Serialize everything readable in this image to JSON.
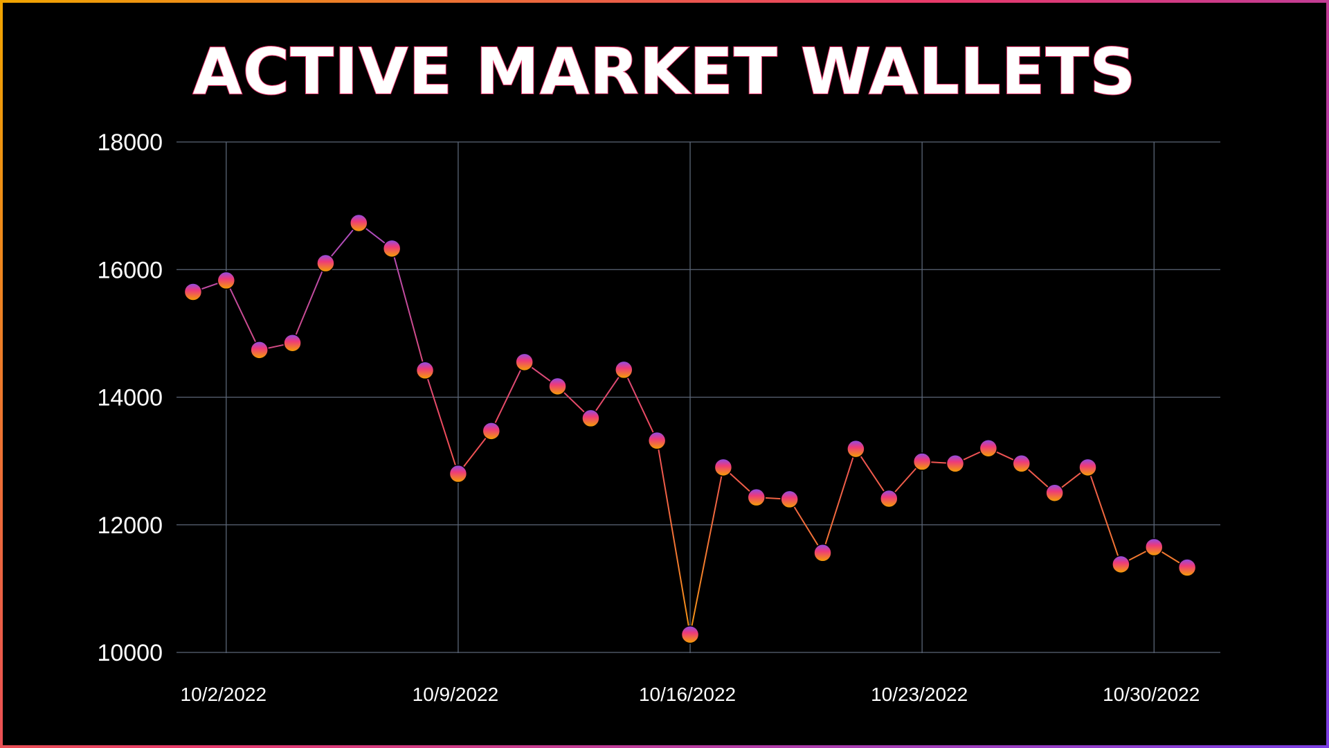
{
  "chart_data": {
    "type": "line",
    "title": "ACTIVE MARKET WALLETS",
    "xlabel": "",
    "ylabel": "",
    "ylim": [
      10000,
      18000
    ],
    "yticks": [
      10000,
      12000,
      14000,
      16000,
      18000
    ],
    "xlim": [
      "2022-10-01",
      "2022-10-31"
    ],
    "xticks": [
      "10/2/2022",
      "10/9/2022",
      "10/16/2022",
      "10/23/2022",
      "10/30/2022"
    ],
    "grid": true,
    "x": [
      "2022-10-01",
      "2022-10-02",
      "2022-10-03",
      "2022-10-04",
      "2022-10-05",
      "2022-10-06",
      "2022-10-07",
      "2022-10-08",
      "2022-10-09",
      "2022-10-10",
      "2022-10-11",
      "2022-10-12",
      "2022-10-13",
      "2022-10-14",
      "2022-10-15",
      "2022-10-16",
      "2022-10-17",
      "2022-10-18",
      "2022-10-19",
      "2022-10-20",
      "2022-10-21",
      "2022-10-22",
      "2022-10-23",
      "2022-10-24",
      "2022-10-25",
      "2022-10-26",
      "2022-10-27",
      "2022-10-28",
      "2022-10-29",
      "2022-10-30",
      "2022-10-31"
    ],
    "series": [
      {
        "values": [
          15650,
          15830,
          14740,
          14850,
          16100,
          16730,
          16330,
          14420,
          12800,
          13470,
          14550,
          14170,
          13670,
          14430,
          13320,
          10280,
          12900,
          12430,
          12400,
          11560,
          13190,
          12410,
          12990,
          12960,
          13200,
          12960,
          12500,
          12900,
          11380,
          11650,
          11330
        ]
      }
    ]
  },
  "colors": {
    "background": "#000000",
    "grid": "#5b6677",
    "line_start": "#9b4ddb",
    "line_end": "#ef4a5c",
    "marker_top": "#8a4ee8",
    "marker_mid": "#ee3a7a",
    "marker_bottom": "#f5a300",
    "title_outline": "#e8336a"
  }
}
